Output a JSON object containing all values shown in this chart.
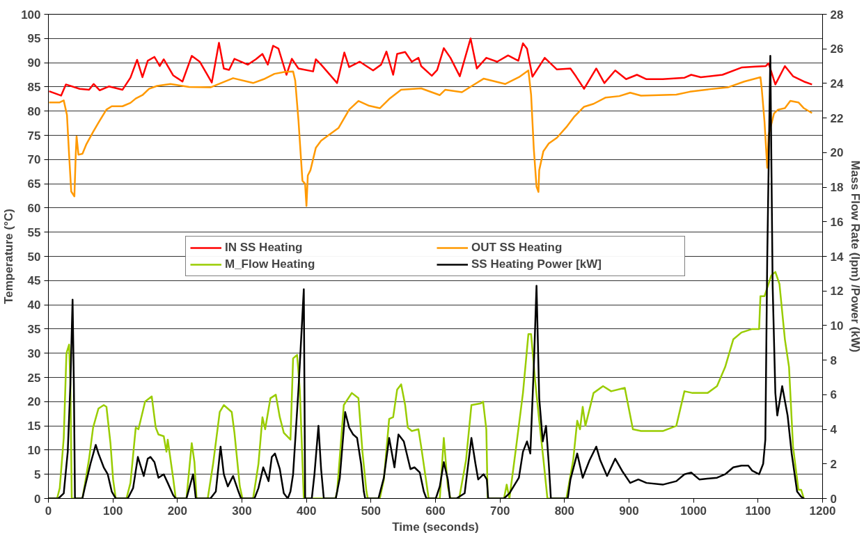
{
  "chart_data": {
    "type": "line",
    "xlabel": "Time (seconds)",
    "ylabel": "Temperature (°C)",
    "y2label": "Mass Flow Rate (lpm) /Power (kW)",
    "xlim": [
      0,
      1200
    ],
    "xticks": [
      0,
      100,
      200,
      300,
      400,
      500,
      600,
      700,
      800,
      900,
      1000,
      1100,
      1200
    ],
    "ylim": [
      0,
      100
    ],
    "yticks": [
      0,
      5,
      10,
      15,
      20,
      25,
      30,
      35,
      40,
      45,
      50,
      55,
      60,
      65,
      70,
      75,
      80,
      85,
      90,
      95,
      100
    ],
    "y2lim": [
      0,
      28
    ],
    "y2ticks": [
      0,
      2,
      4,
      6,
      8,
      10,
      12,
      14,
      16,
      18,
      20,
      22,
      24,
      26,
      28
    ],
    "grid": "y",
    "legend": "center",
    "series": [
      {
        "name": "IN SS Heating",
        "color": "#ff0000",
        "x": [
          1.1,
          19.7,
          27.1,
          48.6,
          63.1,
          70.1,
          79.6,
          94.1,
          114.8,
          127.2,
          137.5,
          145.8,
          154.0,
          164.4,
          172.6,
          178.8,
          193.3,
          207.8,
          222.2,
          234.6,
          253.3,
          264.4,
          271.9,
          280.1,
          288.4,
          309.1,
          321.5,
          331.8,
          340.1,
          348.3,
          356.6,
          369.0,
          377.3,
          387.6,
          410.3,
          414.5,
          422.7,
          447.5,
          458.7,
          466.1,
          482.7,
          503.3,
          515.8,
          524.0,
          534.4,
          540.6,
          553.0,
          563.3,
          573.6,
          577.8,
          594.3,
          602.6,
          612.9,
          623.2,
          637.7,
          654.4,
          664.1,
          678.8,
          695.6,
          712.5,
          728.4,
          735.6,
          741.9,
          750.3,
          769.3,
          788.2,
          809.2,
          817.6,
          830.3,
          849.2,
          861.8,
          878.6,
          895.5,
          912.3,
          927.0,
          952.3,
          986.1,
          996.4,
          1011.2,
          1044.8,
          1074.3,
          1095.3,
          1112.1,
          1116.3,
          1126.8,
          1141.6,
          1154.2,
          1171.0,
          1183.6
        ],
        "values": [
          84.1,
          83.2,
          85.5,
          84.6,
          84.4,
          85.6,
          84.3,
          85.1,
          84.4,
          86.9,
          90.6,
          87.0,
          90.4,
          91.2,
          89.3,
          90.7,
          87.4,
          86.1,
          91.4,
          90.2,
          85.9,
          94.1,
          88.8,
          88.5,
          90.8,
          89.6,
          90.7,
          91.8,
          89.6,
          93.5,
          92.9,
          87.5,
          90.8,
          88.8,
          88.2,
          90.7,
          89.6,
          85.8,
          92.1,
          89.1,
          90.2,
          88.4,
          89.6,
          92.3,
          87.5,
          91.8,
          92.2,
          90.2,
          91.0,
          89.3,
          87.3,
          88.5,
          93.0,
          91.0,
          87.2,
          95.0,
          88.8,
          91.0,
          90.2,
          91.5,
          90.4,
          94.0,
          92.9,
          87.1,
          91.0,
          88.6,
          88.8,
          87.2,
          84.6,
          88.8,
          85.8,
          88.4,
          86.6,
          87.5,
          86.6,
          86.6,
          86.9,
          87.5,
          87.0,
          87.5,
          89.0,
          89.2,
          89.3,
          89.9,
          85.5,
          89.3,
          87.2,
          86.1,
          85.5
        ]
      },
      {
        "name": "OUT SS Heating",
        "color": "#ff9900",
        "x": [
          1.1,
          17.6,
          23.8,
          28.8,
          32.1,
          35.4,
          40.3,
          42.4,
          43.7,
          46.6,
          52.8,
          59.0,
          69.3,
          77.6,
          89.9,
          98.2,
          114.8,
          127.2,
          135.4,
          145.8,
          156.1,
          168.5,
          189.2,
          218.1,
          251.2,
          267.7,
          286.3,
          317.3,
          333.9,
          350.4,
          366.9,
          379.3,
          382.6,
          387.6,
          393.8,
          397.9,
          400.0,
          402.1,
          406.2,
          414.5,
          422.7,
          435.1,
          449.6,
          466.2,
          480.6,
          497.2,
          513.7,
          528.2,
          546.7,
          577.8,
          606.7,
          615.0,
          641.0,
          657.8,
          674.6,
          708.3,
          729.3,
          744.0,
          748.2,
          752.4,
          756.6,
          759.6,
          760.8,
          767.2,
          775.6,
          788.2,
          802.9,
          815.5,
          830.3,
          845.0,
          863.9,
          885.0,
          901.8,
          918.6,
          973.3,
          994.3,
          1023.8,
          1053.2,
          1078.5,
          1103.7,
          1105.8,
          1110.0,
          1114.2,
          1116.3,
          1124.7,
          1131.0,
          1141.6,
          1150.0,
          1162.6,
          1171.0,
          1183.6
        ],
        "values": [
          81.8,
          81.8,
          82.2,
          79.2,
          71.0,
          63.4,
          62.4,
          71.0,
          74.8,
          71.0,
          71.2,
          73.2,
          75.7,
          77.6,
          80.3,
          81.0,
          81.0,
          81.7,
          82.6,
          83.3,
          84.6,
          85.2,
          85.6,
          85.0,
          84.9,
          85.8,
          86.8,
          85.8,
          86.6,
          87.7,
          88.1,
          88.2,
          86.3,
          78.1,
          65.6,
          65.0,
          60.4,
          66.7,
          67.8,
          72.4,
          73.9,
          75.1,
          76.5,
          80.3,
          82.1,
          81.1,
          80.6,
          82.5,
          84.4,
          84.7,
          83.3,
          84.4,
          83.9,
          85.3,
          86.7,
          85.6,
          87.0,
          88.4,
          83.4,
          72.2,
          64.4,
          63.3,
          67.8,
          71.7,
          73.3,
          74.5,
          76.7,
          78.9,
          80.9,
          81.5,
          82.8,
          83.1,
          83.8,
          83.2,
          83.4,
          84.0,
          84.5,
          84.9,
          86.1,
          87.0,
          84.5,
          77.8,
          68.3,
          75.0,
          79.5,
          80.3,
          80.6,
          82.1,
          81.8,
          80.6,
          79.6
        ]
      },
      {
        "name": "M_Flow Heating",
        "color": "#99cc00",
        "axis": "y2",
        "x": [
          0,
          13.5,
          17.6,
          23.8,
          28.0,
          32.1,
          34.1,
          36.2,
          39.5,
          52.7,
          56.9,
          63.1,
          69.3,
          77.6,
          85.8,
          90.0,
          96.2,
          100.3,
          104.4,
          121.0,
          127.2,
          135.4,
          139.6,
          149.9,
          160.2,
          166.4,
          170.6,
          178.8,
          183.0,
          185.0,
          193.3,
          197.4,
          214.0,
          222.2,
          226.4,
          229.7,
          247.0,
          255.3,
          265.6,
          271.9,
          284.2,
          288.4,
          296.7,
          300.8,
          317.3,
          325.6,
          331.8,
          336.0,
          344.2,
          352.5,
          358.7,
          364.9,
          375.2,
          379.3,
          385.5,
          389.7,
          395.9,
          445.0,
          447.5,
          457.9,
          470.3,
          480.6,
          486.8,
          493.0,
          495.1,
          513.7,
          520.0,
          528.2,
          534.4,
          540.6,
          546.8,
          553.0,
          557.1,
          563.3,
          573.6,
          577.8,
          586.0,
          589.4,
          606.7,
          612.9,
          619.1,
          623.2,
          636.7,
          647.3,
          655.7,
          670.4,
          673.8,
          678.8,
          680.9,
          706.2,
          710.4,
          714.6,
          725.1,
          735.6,
          744.0,
          748.2,
          754.5,
          760.8,
          767.2,
          773.5,
          802.9,
          813.4,
          819.7,
          824.0,
          828.2,
          832.4,
          845.0,
          859.7,
          872.3,
          893.4,
          906.0,
          918.6,
          952.3,
          973.3,
          985.9,
          998.5,
          1021.7,
          1036.4,
          1049.0,
          1061.6,
          1074.3,
          1091.1,
          1101.6,
          1103.7,
          1110.0,
          1120.5,
          1126.8,
          1133.2,
          1141.6,
          1148.0,
          1154.2,
          1162.6,
          1166.8,
          1171.0
        ],
        "values": [
          0,
          0,
          0.6,
          3.5,
          8.4,
          8.9,
          6.6,
          0,
          0,
          0,
          0.9,
          2.3,
          4.1,
          5.2,
          5.4,
          5.3,
          3.2,
          1.1,
          0,
          0,
          0.9,
          4.1,
          4.0,
          5.6,
          5.9,
          4.1,
          3.7,
          3.6,
          2.7,
          3.4,
          1.2,
          0,
          0,
          3.2,
          2.1,
          0,
          0,
          2.0,
          5.0,
          5.4,
          5.0,
          3.8,
          0.7,
          0,
          0,
          2.0,
          4.7,
          4.0,
          5.8,
          6.0,
          4.7,
          3.8,
          3.4,
          8.1,
          8.3,
          6.3,
          0,
          0,
          0.4,
          5.4,
          6.1,
          5.8,
          2.7,
          0.4,
          0,
          0,
          1.1,
          4.6,
          4.7,
          6.3,
          6.6,
          5.4,
          4.1,
          3.9,
          4.0,
          3.0,
          0.9,
          0,
          0,
          3.5,
          0.7,
          0,
          0,
          2.2,
          5.4,
          5.5,
          5.6,
          4.0,
          0,
          0,
          0.8,
          0,
          3.0,
          6.1,
          9.5,
          9.5,
          6.8,
          4.5,
          2.3,
          0,
          0,
          2.2,
          4.5,
          4.0,
          5.3,
          4.2,
          6.1,
          6.5,
          6.2,
          6.4,
          4.0,
          3.9,
          3.9,
          4.2,
          6.2,
          6.1,
          6.1,
          6.5,
          7.6,
          9.2,
          9.6,
          9.8,
          9.8,
          11.7,
          11.7,
          12.9,
          13.1,
          12.4,
          9.2,
          7.6,
          3.0,
          0.5,
          0.5,
          0
        ]
      },
      {
        "name": "SS Heating Power [kW]",
        "color": "#000000",
        "axis": "y2",
        "x": [
          0,
          15.5,
          23.8,
          30.0,
          34.1,
          37.5,
          39.5,
          41.2,
          52.7,
          56.9,
          65.2,
          73.4,
          77.6,
          85.8,
          92.0,
          98.2,
          104.4,
          123.0,
          131.3,
          138.7,
          147.8,
          154.0,
          158.2,
          164.4,
          170.6,
          178.8,
          185.0,
          193.3,
          197.4,
          214.0,
          224.3,
          228.5,
          251.2,
          259.5,
          266.9,
          271.9,
          278.1,
          286.3,
          294.6,
          298.7,
          319.4,
          325.6,
          333.0,
          341.3,
          346.3,
          351.2,
          358.7,
          364.9,
          371.1,
          375.2,
          379.3,
          387.6,
          395.9,
          398.0,
          408.3,
          412.4,
          418.6,
          422.7,
          426.9,
          445.5,
          451.7,
          460.0,
          466.2,
          472.4,
          478.5,
          484.7,
          488.9,
          491.0,
          511.6,
          520.0,
          528.2,
          536.4,
          542.6,
          550.9,
          561.2,
          567.4,
          575.7,
          581.9,
          586.0,
          600.5,
          606.7,
          612.9,
          619.1,
          622.4,
          632.5,
          645.2,
          655.7,
          662.0,
          666.2,
          674.6,
          679.6,
          681.7,
          706.2,
          714.6,
          729.3,
          735.6,
          741.9,
          747.0,
          752.4,
          756.6,
          760.8,
          766.3,
          771.4,
          775.6,
          778.9,
          805.0,
          809.2,
          819.7,
          828.2,
          838.7,
          849.2,
          855.5,
          866.0,
          878.6,
          889.2,
          901.8,
          914.4,
          927.0,
          952.3,
          973.3,
          985.9,
          996.4,
          1009.0,
          1036.4,
          1049.0,
          1061.6,
          1074.3,
          1084.8,
          1091.1,
          1101.6,
          1107.9,
          1111.3,
          1114.2,
          1119.0,
          1122.6,
          1126.8,
          1129.8,
          1137.4,
          1145.8,
          1152.1,
          1160.5,
          1166.8,
          1171.0
        ],
        "values": [
          0,
          0,
          0.3,
          2.7,
          6.6,
          11.5,
          6.6,
          0,
          0,
          0.7,
          2.0,
          3.1,
          2.6,
          1.8,
          1.4,
          0.4,
          0,
          0,
          0.6,
          2.4,
          1.3,
          2.3,
          2.4,
          2.1,
          1.2,
          1.4,
          0.9,
          0.2,
          0,
          0,
          1.4,
          0,
          0,
          0.4,
          3.0,
          1.4,
          0.7,
          1.3,
          0.4,
          0,
          0,
          0.6,
          1.8,
          1.0,
          2.4,
          2.6,
          1.7,
          0.3,
          0,
          0.4,
          1.4,
          6.3,
          12.1,
          0,
          0,
          1.4,
          4.2,
          1.7,
          0,
          0,
          1.2,
          5.0,
          4.1,
          3.7,
          3.5,
          2.0,
          0.4,
          0,
          0,
          1.2,
          3.5,
          1.8,
          3.7,
          3.3,
          1.7,
          1.8,
          1.5,
          0.4,
          0,
          0,
          0.7,
          2.1,
          1.1,
          0,
          0,
          0.3,
          3.5,
          2.0,
          1.1,
          1.4,
          1.1,
          0,
          0,
          0.3,
          1.2,
          2.7,
          3.3,
          2.6,
          7.6,
          12.3,
          5.8,
          3.3,
          4.2,
          2.0,
          0,
          0,
          1.1,
          2.6,
          1.2,
          2.2,
          3.0,
          2.2,
          1.3,
          2.3,
          1.6,
          0.9,
          1.1,
          0.9,
          0.8,
          1.0,
          1.4,
          1.5,
          1.1,
          1.2,
          1.4,
          1.8,
          1.9,
          1.9,
          1.6,
          1.4,
          2.0,
          3.4,
          13.8,
          25.6,
          12.3,
          6.1,
          4.8,
          6.5,
          4.8,
          2.6,
          0.4,
          0.1,
          0
        ]
      }
    ]
  }
}
